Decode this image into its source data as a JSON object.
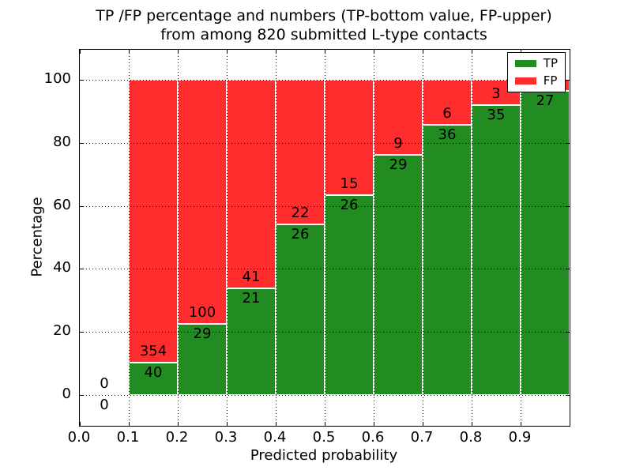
{
  "title": {
    "line1": "TP /FP percentage and numbers (TP-bottom value, FP-upper)",
    "line2": "from among 820 submitted L-type contacts"
  },
  "axes": {
    "xlabel": "Predicted probability",
    "ylabel": "Percentage",
    "yticks": [
      0,
      20,
      40,
      60,
      80,
      100
    ],
    "xticks": [
      0.0,
      0.1,
      0.2,
      0.3,
      0.4,
      0.5,
      0.6,
      0.7,
      0.8,
      0.9
    ]
  },
  "legend": {
    "items": [
      {
        "label": "TP",
        "color": "#228B22"
      },
      {
        "label": "FP",
        "color": "#FF2D2D"
      }
    ]
  },
  "colors": {
    "tp": "#228B22",
    "fp": "#FF2D2D",
    "grid": "#000000",
    "background": "#FFFFFF",
    "text": "#000000"
  },
  "chart_data": {
    "type": "bar",
    "stacked": true,
    "title": "TP /FP percentage and numbers (TP-bottom value, FP-upper) from among 820 submitted L-type contacts",
    "xlabel": "Predicted probability",
    "ylabel": "Percentage",
    "total_submitted_contacts": 820,
    "ylim": [
      0,
      100
    ],
    "xlim": [
      0.0,
      1.0
    ],
    "grid": "dotted",
    "legend_position": "upper right",
    "bin_edges": [
      0.0,
      0.1,
      0.2,
      0.3,
      0.4,
      0.5,
      0.6,
      0.7,
      0.8,
      0.9,
      1.0
    ],
    "series": [
      {
        "name": "TP",
        "stack": "bottom",
        "counts": [
          0,
          40,
          29,
          21,
          26,
          26,
          29,
          36,
          35,
          27
        ]
      },
      {
        "name": "FP",
        "stack": "top",
        "counts": [
          0,
          354,
          100,
          41,
          22,
          15,
          9,
          6,
          3,
          1
        ]
      }
    ],
    "bins": [
      {
        "range": "0.0-0.1",
        "tp": 0,
        "fp": 0,
        "tp_pct": 0.0,
        "fp_pct": 0.0
      },
      {
        "range": "0.1-0.2",
        "tp": 40,
        "fp": 354,
        "tp_pct": 10.2,
        "fp_pct": 89.8
      },
      {
        "range": "0.2-0.3",
        "tp": 29,
        "fp": 100,
        "tp_pct": 22.5,
        "fp_pct": 77.5
      },
      {
        "range": "0.3-0.4",
        "tp": 21,
        "fp": 41,
        "tp_pct": 33.9,
        "fp_pct": 66.1
      },
      {
        "range": "0.4-0.5",
        "tp": 26,
        "fp": 22,
        "tp_pct": 54.2,
        "fp_pct": 45.8
      },
      {
        "range": "0.5-0.6",
        "tp": 26,
        "fp": 15,
        "tp_pct": 63.4,
        "fp_pct": 36.6
      },
      {
        "range": "0.6-0.7",
        "tp": 29,
        "fp": 9,
        "tp_pct": 76.3,
        "fp_pct": 23.7
      },
      {
        "range": "0.7-0.8",
        "tp": 36,
        "fp": 6,
        "tp_pct": 85.7,
        "fp_pct": 14.3
      },
      {
        "range": "0.8-0.9",
        "tp": 35,
        "fp": 3,
        "tp_pct": 92.1,
        "fp_pct": 7.9
      },
      {
        "range": "0.9-1.0",
        "tp": 27,
        "fp": 1,
        "tp_pct": 96.4,
        "fp_pct": 3.6
      }
    ]
  }
}
